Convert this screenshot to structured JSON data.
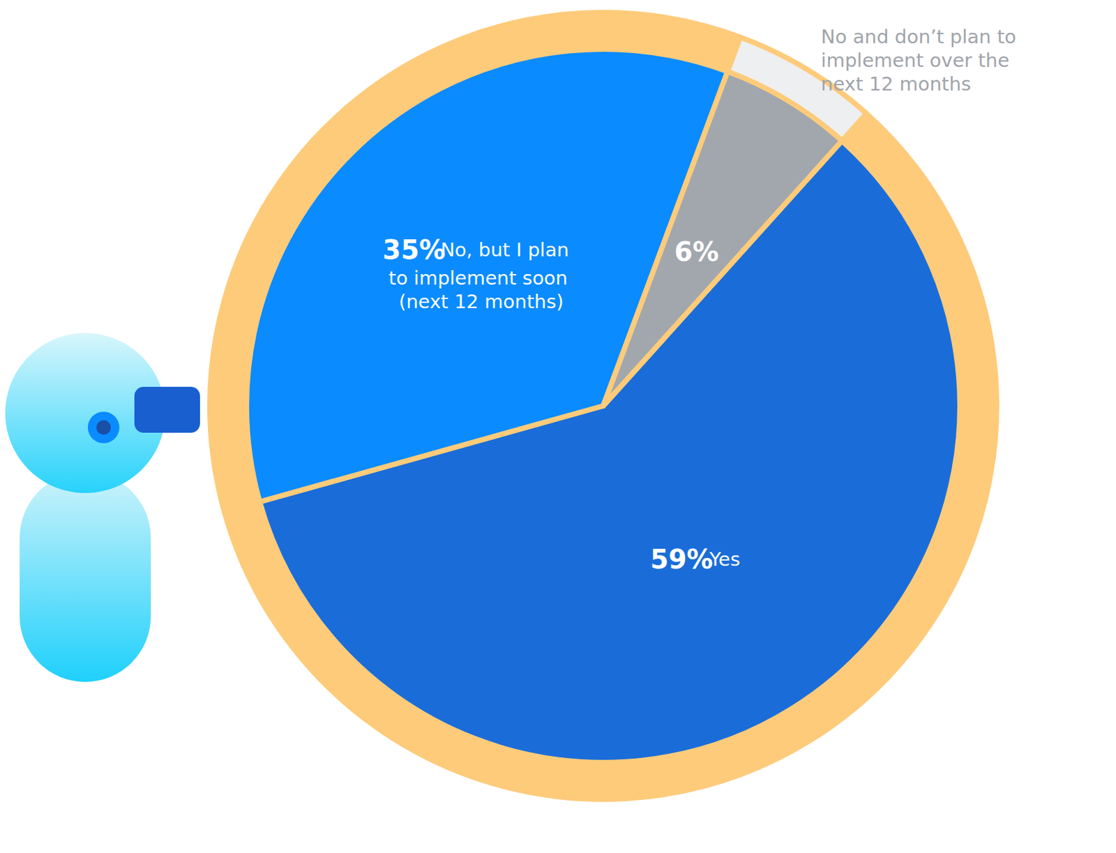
{
  "chart_data": {
    "type": "pie",
    "categories": [
      "Yes",
      "No, but I plan to implement soon (next 12 months)",
      "No and don’t plan to implement over the next 12 months"
    ],
    "values": [
      59,
      35,
      6
    ],
    "value_labels": [
      "59%",
      "35%",
      "6%"
    ],
    "colors": [
      "#1a6dd9",
      "#0a8bff",
      "#a2a7ae"
    ],
    "data_labels": true
  }
}
